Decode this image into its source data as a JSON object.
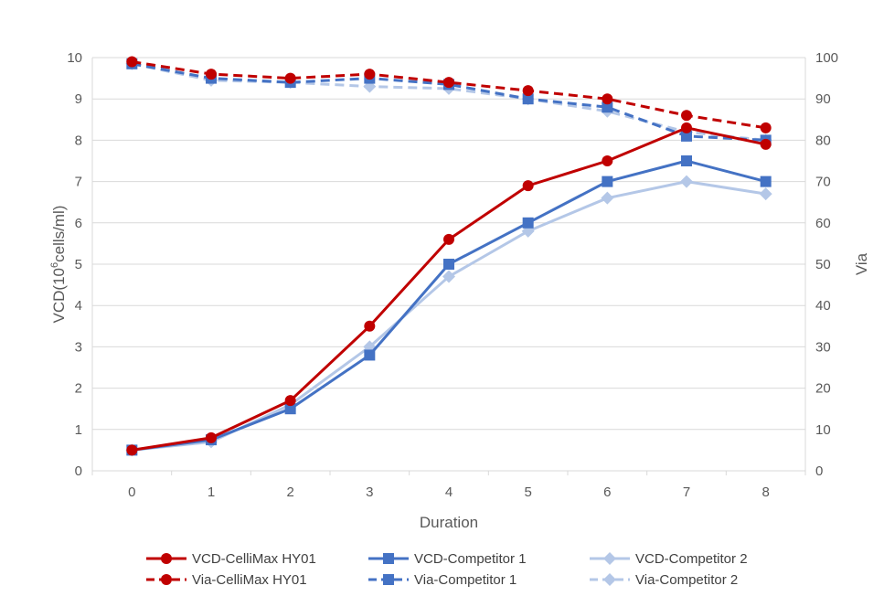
{
  "chart_data": {
    "type": "line",
    "title": "",
    "xlabel": "Duration",
    "ylabel_left": {
      "prefix": "VCD(10",
      "superscript": "6",
      "suffix": "cells/ml)"
    },
    "ylabel_right": "Via",
    "x": [
      0,
      1,
      2,
      3,
      4,
      5,
      6,
      7,
      8
    ],
    "x_tick_labels": [
      "0",
      "1",
      "2",
      "3",
      "4",
      "5",
      "6",
      "7",
      "8"
    ],
    "ylim_left": [
      0,
      10
    ],
    "yticks_left": [
      "0",
      "1",
      "2",
      "3",
      "4",
      "5",
      "6",
      "7",
      "8",
      "9",
      "10"
    ],
    "ylim_right": [
      0,
      100
    ],
    "yticks_right": [
      "0",
      "10",
      "20",
      "30",
      "40",
      "50",
      "60",
      "70",
      "80",
      "90",
      "100"
    ],
    "grid": true,
    "legend_position": "bottom",
    "series": [
      {
        "name": "VCD-CelliMax HY01",
        "axis": "left",
        "style": "solid",
        "marker": "circle",
        "color": "#C00000",
        "values": [
          0.5,
          0.8,
          1.7,
          3.5,
          5.6,
          6.9,
          7.5,
          8.3,
          7.9
        ]
      },
      {
        "name": "VCD-Competitor 1",
        "axis": "left",
        "style": "solid",
        "marker": "square",
        "color": "#4472C4",
        "values": [
          0.5,
          0.75,
          1.5,
          2.8,
          5.0,
          6.0,
          7.0,
          7.5,
          7.0
        ]
      },
      {
        "name": "VCD-Competitor 2",
        "axis": "left",
        "style": "solid",
        "marker": "diamond",
        "color": "#B4C7E7",
        "values": [
          0.5,
          0.7,
          1.6,
          3.0,
          4.7,
          5.8,
          6.6,
          7.0,
          6.7
        ]
      },
      {
        "name": "Via-CelliMax HY01",
        "axis": "right",
        "style": "dashed",
        "marker": "circle",
        "color": "#C00000",
        "values": [
          99,
          96,
          95,
          96,
          94,
          92,
          90,
          86,
          83
        ]
      },
      {
        "name": "Via-Competitor 1",
        "axis": "right",
        "style": "dashed",
        "marker": "square",
        "color": "#4472C4",
        "values": [
          98.5,
          95,
          94,
          95,
          93.5,
          90,
          88,
          81,
          80
        ]
      },
      {
        "name": "Via-Competitor 2",
        "axis": "right",
        "style": "dashed",
        "marker": "diamond",
        "color": "#B4C7E7",
        "values": [
          98.5,
          94.5,
          94,
          93,
          92.5,
          90,
          87,
          82,
          80
        ]
      }
    ],
    "legend_order": [
      0,
      1,
      2,
      3,
      4,
      5
    ]
  }
}
